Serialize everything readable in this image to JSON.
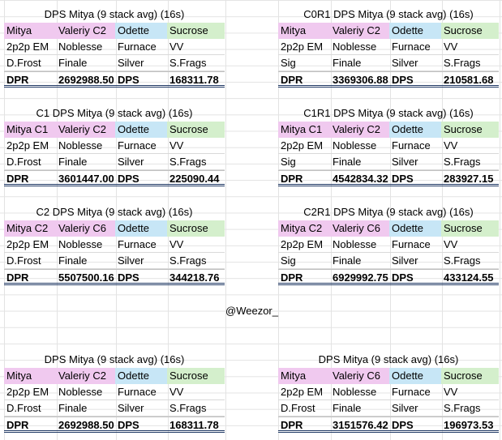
{
  "blocks": [
    {
      "title": "DPS Mitya (9 stack avg) (16s)",
      "h": [
        "Mitya",
        "Valeriy C2",
        "Odette",
        "Sucrose"
      ],
      "r2": [
        "2p2p EM",
        "Noblesse",
        "Furnace",
        "VV"
      ],
      "r3": [
        "D.Frost",
        "Finale",
        "Silver",
        "S.Frags"
      ],
      "dpr": [
        "DPR",
        "2692988.50",
        "DPS",
        "168311.78"
      ]
    },
    {
      "title": "C0R1 DPS Mitya (9 stack avg) (16s)",
      "h": [
        "Mitya",
        "Valeriy C2",
        "Odette",
        "Sucrose"
      ],
      "r2": [
        "2p2p EM",
        "Noblesse",
        "Furnace",
        "VV"
      ],
      "r3": [
        "Sig",
        "Finale",
        "Silver",
        "S.Frags"
      ],
      "dpr": [
        "DPR",
        "3369306.88",
        "DPS",
        "210581.68"
      ]
    },
    {
      "title": "C1 DPS Mitya (9 stack avg) (16s)",
      "h": [
        "Mitya C1",
        "Valeriy C2",
        "Odette",
        "Sucrose"
      ],
      "r2": [
        "2p2p EM",
        "Noblesse",
        "Furnace",
        "VV"
      ],
      "r3": [
        "D.Frost",
        "Finale",
        "Silver",
        "S.Frags"
      ],
      "dpr": [
        "DPR",
        "3601447.00",
        "DPS",
        "225090.44"
      ]
    },
    {
      "title": "C1R1 DPS Mitya (9 stack avg) (16s)",
      "h": [
        "Mitya C1",
        "Valeriy C2",
        "Odette",
        "Sucrose"
      ],
      "r2": [
        "2p2p EM",
        "Noblesse",
        "Furnace",
        "VV"
      ],
      "r3": [
        "Sig",
        "Finale",
        "Silver",
        "S.Frags"
      ],
      "dpr": [
        "DPR",
        "4542834.32",
        "DPS",
        "283927.15"
      ]
    },
    {
      "title": "C2 DPS Mitya (9 stack avg) (16s)",
      "h": [
        "Mitya C2",
        "Valeriy C6",
        "Odette",
        "Sucrose"
      ],
      "r2": [
        "2p2p EM",
        "Noblesse",
        "Furnace",
        "VV"
      ],
      "r3": [
        "D.Frost",
        "Finale",
        "Silver",
        "S.Frags"
      ],
      "dpr": [
        "DPR",
        "5507500.16",
        "DPS",
        "344218.76"
      ]
    },
    {
      "title": "C2R1 DPS Mitya (9 stack avg) (16s)",
      "h": [
        "Mitya C2",
        "Valeriy C6",
        "Odette",
        "Sucrose"
      ],
      "r2": [
        "2p2p EM",
        "Noblesse",
        "Furnace",
        "VV"
      ],
      "r3": [
        "Sig",
        "Finale",
        "Silver",
        "S.Frags"
      ],
      "dpr": [
        "DPR",
        "6929992.75",
        "DPS",
        "433124.55"
      ]
    },
    {
      "title": "DPS Mitya (9 stack avg) (16s)",
      "h": [
        "Mitya",
        "Valeriy C2",
        "Odette",
        "Sucrose"
      ],
      "r2": [
        "2p2p EM",
        "Noblesse",
        "Furnace",
        "VV"
      ],
      "r3": [
        "D.Frost",
        "Finale",
        "Silver",
        "S.Frags"
      ],
      "dpr": [
        "DPR",
        "2692988.50",
        "DPS",
        "168311.78"
      ]
    },
    {
      "title": "DPS Mitya (9 stack avg) (16s)",
      "h": [
        "Mitya",
        "Valeriy C6",
        "Odette",
        "Sucrose"
      ],
      "r2": [
        "2p2p EM",
        "Noblesse",
        "Furnace",
        "VV"
      ],
      "r3": [
        "D.Frost",
        "Finale",
        "Silver",
        "S.Frags"
      ],
      "dpr": [
        "DPR",
        "3151576.42",
        "DPS",
        "196973.53"
      ]
    }
  ],
  "credit": "@Weezor_"
}
